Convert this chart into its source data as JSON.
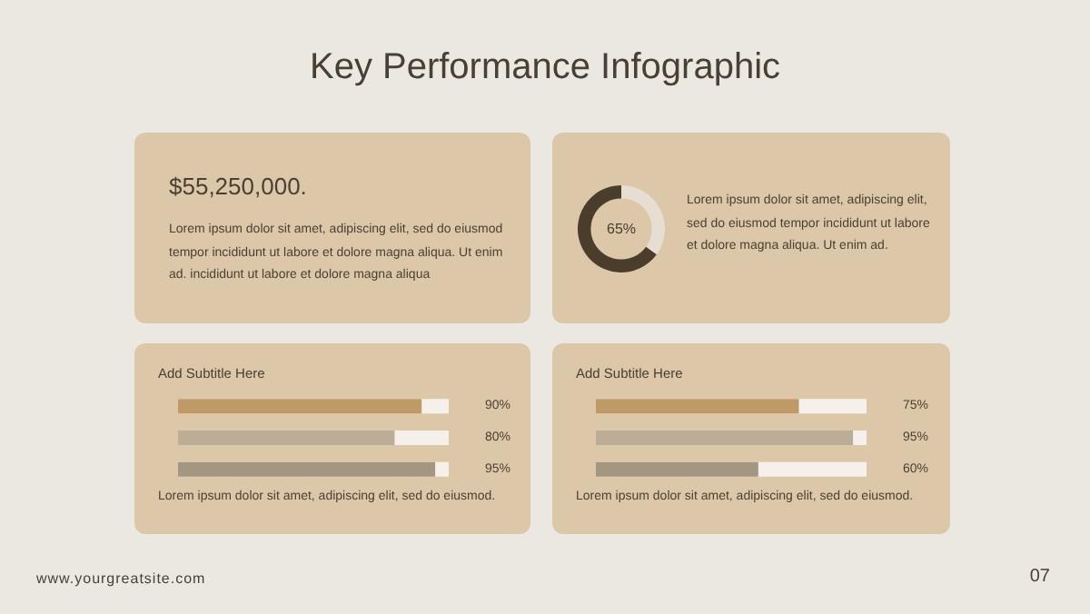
{
  "chart_data": [
    {
      "type": "other",
      "title": "Key Performance Infographic",
      "annotations": [
        "www.yourgreatsite.com",
        "07"
      ]
    },
    {
      "type": "other",
      "title": "$55,250,000.",
      "annotations": [
        "Lorem ipsum dolor sit amet, adipiscing elit, sed do eiusmod tempor incididunt ut labore et dolore magna aliqua. Ut enim ad. incididunt ut labore et dolore magna aliqua"
      ]
    },
    {
      "type": "donut",
      "categories": [
        null,
        null
      ],
      "values": [
        35,
        65
      ],
      "colors": [
        "#e6ded2",
        "#4a3d2c"
      ],
      "annotations": [
        "65%",
        "Lorem ipsum dolor sit amet, adipiscing elit, sed do eiusmod tempor incididunt ut labore et dolore magna aliqua. Ut enim ad."
      ]
    },
    {
      "type": "bar",
      "orientation": "horizontal",
      "title": "Add Subtitle Here",
      "categories": [
        null,
        null,
        null
      ],
      "values": [
        90,
        80,
        95
      ],
      "colors": [
        "#c09a66",
        "#bcae96",
        "#a39782"
      ],
      "value_labels": [
        "90%",
        "80%",
        "95%"
      ],
      "xlim": [
        0,
        100
      ],
      "annotations": [
        "Lorem ipsum dolor sit amet, adipiscing elit, sed do eiusmod."
      ]
    },
    {
      "type": "bar",
      "orientation": "horizontal",
      "title": "Add Subtitle Here",
      "categories": [
        null,
        null,
        null
      ],
      "values": [
        75,
        95,
        60
      ],
      "colors": [
        "#c09a66",
        "#bcae96",
        "#a39782"
      ],
      "value_labels": [
        "75%",
        "95%",
        "60%"
      ],
      "xlim": [
        0,
        100
      ],
      "annotations": [
        "Lorem ipsum dolor sit amet, adipiscing elit, sed do eiusmod."
      ]
    }
  ]
}
